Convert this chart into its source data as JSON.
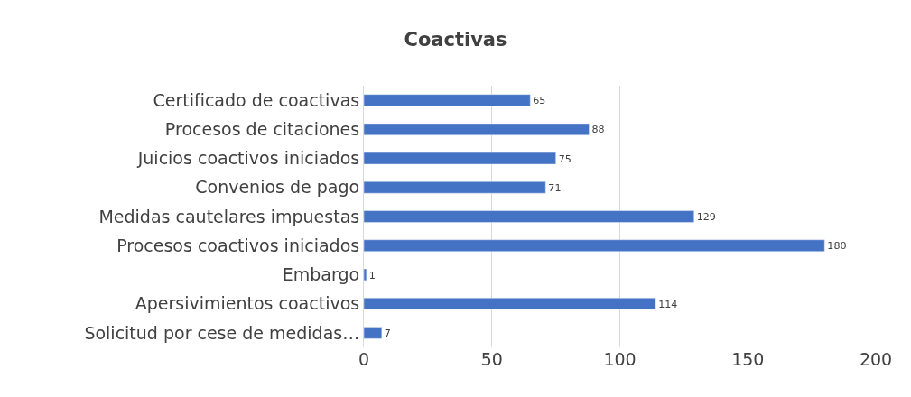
{
  "chart_data": {
    "type": "bar",
    "title": "Coactivas",
    "orientation": "horizontal",
    "categories": [
      "Certificado de coactivas",
      "Procesos de citaciones",
      "Juicios coactivos iniciados",
      "Convenios de pago",
      "Medidas cautelares impuestas",
      "Procesos coactivos iniciados",
      "Embargo",
      "Apersivimientos coactivos",
      "Solicitud por cese de medidas…"
    ],
    "values": [
      65,
      88,
      75,
      71,
      129,
      180,
      1,
      114,
      7
    ],
    "color": "#4472c4",
    "xlim": [
      0,
      200
    ],
    "xticks": [
      0,
      50,
      100,
      150,
      200
    ],
    "grid": "x",
    "data_labels": true
  }
}
